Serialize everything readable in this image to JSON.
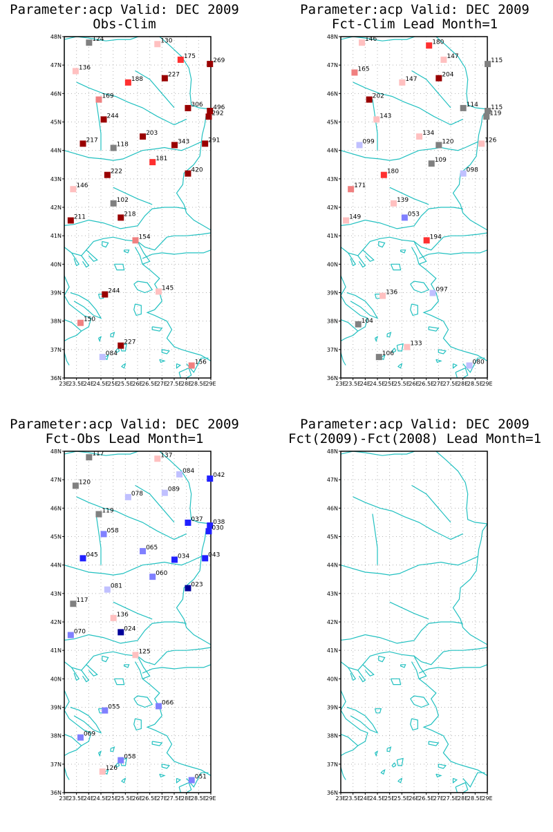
{
  "panels": [
    {
      "title_line1": "Parameter:acp Valid: DEC 2009",
      "title_line2": "Obs-Clim",
      "stations": [
        {
          "lon": 24.0,
          "lat": 47.8,
          "label": "124",
          "color": "#808080"
        },
        {
          "lon": 26.8,
          "lat": 47.75,
          "label": "130",
          "color": "#ffc0c0"
        },
        {
          "lon": 27.75,
          "lat": 47.2,
          "label": "175",
          "color": "#ff3030"
        },
        {
          "lon": 28.95,
          "lat": 47.05,
          "label": "269",
          "color": "#990000"
        },
        {
          "lon": 23.45,
          "lat": 46.8,
          "label": "136",
          "color": "#ffc0c0"
        },
        {
          "lon": 27.1,
          "lat": 46.55,
          "label": "227",
          "color": "#990000"
        },
        {
          "lon": 25.6,
          "lat": 46.4,
          "label": "188",
          "color": "#ff3030"
        },
        {
          "lon": 24.4,
          "lat": 45.8,
          "label": "169",
          "color": "#f08080"
        },
        {
          "lon": 28.05,
          "lat": 45.5,
          "label": "306",
          "color": "#990000"
        },
        {
          "lon": 28.95,
          "lat": 45.4,
          "label": "496",
          "color": "#990000"
        },
        {
          "lon": 28.9,
          "lat": 45.2,
          "label": "292",
          "color": "#990000"
        },
        {
          "lon": 24.6,
          "lat": 45.1,
          "label": "244",
          "color": "#990000"
        },
        {
          "lon": 26.2,
          "lat": 44.5,
          "label": "203",
          "color": "#990000"
        },
        {
          "lon": 23.75,
          "lat": 44.25,
          "label": "217",
          "color": "#990000"
        },
        {
          "lon": 25.0,
          "lat": 44.1,
          "label": "118",
          "color": "#808080"
        },
        {
          "lon": 27.5,
          "lat": 44.2,
          "label": "343",
          "color": "#990000"
        },
        {
          "lon": 28.75,
          "lat": 44.25,
          "label": "291",
          "color": "#990000"
        },
        {
          "lon": 26.6,
          "lat": 43.6,
          "label": "181",
          "color": "#ff3030"
        },
        {
          "lon": 28.05,
          "lat": 43.2,
          "label": "420",
          "color": "#990000"
        },
        {
          "lon": 24.75,
          "lat": 43.15,
          "label": "222",
          "color": "#990000"
        },
        {
          "lon": 23.35,
          "lat": 42.65,
          "label": "146",
          "color": "#ffc0c0"
        },
        {
          "lon": 25.0,
          "lat": 42.15,
          "label": "102",
          "color": "#808080"
        },
        {
          "lon": 25.3,
          "lat": 41.65,
          "label": "218",
          "color": "#990000"
        },
        {
          "lon": 23.25,
          "lat": 41.55,
          "label": "211",
          "color": "#990000"
        },
        {
          "lon": 25.9,
          "lat": 40.85,
          "label": "154",
          "color": "#f08080"
        },
        {
          "lon": 26.85,
          "lat": 39.05,
          "label": "145",
          "color": "#ffc0c0"
        },
        {
          "lon": 24.65,
          "lat": 38.95,
          "label": "244",
          "color": "#990000"
        },
        {
          "lon": 23.65,
          "lat": 37.95,
          "label": "150",
          "color": "#f08080"
        },
        {
          "lon": 25.3,
          "lat": 37.15,
          "label": "227",
          "color": "#990000"
        },
        {
          "lon": 24.55,
          "lat": 36.75,
          "label": "084",
          "color": "#c0c0ff"
        },
        {
          "lon": 28.2,
          "lat": 36.45,
          "label": "156",
          "color": "#f08080"
        }
      ]
    },
    {
      "title_line1": "Parameter:acp Valid: DEC 2009",
      "title_line2": "Fct-Clim Lead Month=1",
      "stations": [
        {
          "lon": 23.85,
          "lat": 47.8,
          "label": "146",
          "color": "#ffc0c0"
        },
        {
          "lon": 26.6,
          "lat": 47.7,
          "label": "180",
          "color": "#ff3030"
        },
        {
          "lon": 27.2,
          "lat": 47.2,
          "label": "147",
          "color": "#ffc0c0"
        },
        {
          "lon": 29.0,
          "lat": 47.05,
          "label": "115",
          "color": "#808080"
        },
        {
          "lon": 23.55,
          "lat": 46.75,
          "label": "165",
          "color": "#f08080"
        },
        {
          "lon": 27.0,
          "lat": 46.55,
          "label": "204",
          "color": "#990000"
        },
        {
          "lon": 25.5,
          "lat": 46.4,
          "label": "147",
          "color": "#ffc0c0"
        },
        {
          "lon": 24.15,
          "lat": 45.8,
          "label": "202",
          "color": "#990000"
        },
        {
          "lon": 28.0,
          "lat": 45.5,
          "label": "114",
          "color": "#808080"
        },
        {
          "lon": 29.0,
          "lat": 45.4,
          "label": "115",
          "color": "#808080"
        },
        {
          "lon": 28.95,
          "lat": 45.2,
          "label": "119",
          "color": "#808080"
        },
        {
          "lon": 24.45,
          "lat": 45.1,
          "label": "143",
          "color": "#ffc0c0"
        },
        {
          "lon": 26.2,
          "lat": 44.5,
          "label": "134",
          "color": "#ffc0c0"
        },
        {
          "lon": 27.0,
          "lat": 44.2,
          "label": "120",
          "color": "#808080"
        },
        {
          "lon": 28.75,
          "lat": 44.25,
          "label": "126",
          "color": "#ffc0c0"
        },
        {
          "lon": 23.75,
          "lat": 44.2,
          "label": "099",
          "color": "#c0c0ff"
        },
        {
          "lon": 26.7,
          "lat": 43.55,
          "label": "109",
          "color": "#808080"
        },
        {
          "lon": 28.0,
          "lat": 43.2,
          "label": "098",
          "color": "#c0c0ff"
        },
        {
          "lon": 24.75,
          "lat": 43.15,
          "label": "180",
          "color": "#ff3030"
        },
        {
          "lon": 23.4,
          "lat": 42.65,
          "label": "171",
          "color": "#f08080"
        },
        {
          "lon": 25.15,
          "lat": 42.15,
          "label": "139",
          "color": "#ffc0c0"
        },
        {
          "lon": 25.6,
          "lat": 41.65,
          "label": "053",
          "color": "#8080ff"
        },
        {
          "lon": 23.2,
          "lat": 41.55,
          "label": "149",
          "color": "#ffc0c0"
        },
        {
          "lon": 26.5,
          "lat": 40.85,
          "label": "194",
          "color": "#ff3030"
        },
        {
          "lon": 26.75,
          "lat": 39.0,
          "label": "097",
          "color": "#c0c0ff"
        },
        {
          "lon": 24.7,
          "lat": 38.9,
          "label": "136",
          "color": "#ffc0c0"
        },
        {
          "lon": 23.7,
          "lat": 37.9,
          "label": "104",
          "color": "#808080"
        },
        {
          "lon": 25.7,
          "lat": 37.1,
          "label": "133",
          "color": "#ffc0c0"
        },
        {
          "lon": 24.55,
          "lat": 36.75,
          "label": "106",
          "color": "#808080"
        },
        {
          "lon": 28.25,
          "lat": 36.45,
          "label": "080",
          "color": "#c0c0ff"
        }
      ]
    },
    {
      "title_line1": "Parameter:acp Valid: DEC 2009",
      "title_line2": "Fct-Obs Lead Month=1",
      "stations": [
        {
          "lon": 24.0,
          "lat": 47.8,
          "label": "117",
          "color": "#808080"
        },
        {
          "lon": 26.8,
          "lat": 47.75,
          "label": "137",
          "color": "#ffc0c0"
        },
        {
          "lon": 27.7,
          "lat": 47.2,
          "label": "084",
          "color": "#c0c0ff"
        },
        {
          "lon": 28.95,
          "lat": 47.05,
          "label": "042",
          "color": "#2020ff"
        },
        {
          "lon": 23.45,
          "lat": 46.8,
          "label": "120",
          "color": "#808080"
        },
        {
          "lon": 27.1,
          "lat": 46.55,
          "label": "089",
          "color": "#c0c0ff"
        },
        {
          "lon": 25.6,
          "lat": 46.4,
          "label": "078",
          "color": "#c0c0ff"
        },
        {
          "lon": 24.4,
          "lat": 45.8,
          "label": "119",
          "color": "#808080"
        },
        {
          "lon": 28.05,
          "lat": 45.5,
          "label": "037",
          "color": "#2020ff"
        },
        {
          "lon": 28.95,
          "lat": 45.4,
          "label": "038",
          "color": "#2020ff"
        },
        {
          "lon": 28.9,
          "lat": 45.2,
          "label": "030",
          "color": "#2020ff"
        },
        {
          "lon": 24.6,
          "lat": 45.1,
          "label": "058",
          "color": "#8080ff"
        },
        {
          "lon": 26.2,
          "lat": 44.5,
          "label": "065",
          "color": "#8080ff"
        },
        {
          "lon": 23.75,
          "lat": 44.25,
          "label": "045",
          "color": "#2020ff"
        },
        {
          "lon": 27.5,
          "lat": 44.2,
          "label": "034",
          "color": "#2020ff"
        },
        {
          "lon": 28.75,
          "lat": 44.25,
          "label": "043",
          "color": "#2020ff"
        },
        {
          "lon": 26.6,
          "lat": 43.6,
          "label": "060",
          "color": "#8080ff"
        },
        {
          "lon": 28.05,
          "lat": 43.2,
          "label": "023",
          "color": "#000099"
        },
        {
          "lon": 24.75,
          "lat": 43.15,
          "label": "081",
          "color": "#c0c0ff"
        },
        {
          "lon": 23.35,
          "lat": 42.65,
          "label": "117",
          "color": "#808080"
        },
        {
          "lon": 25.0,
          "lat": 42.15,
          "label": "136",
          "color": "#ffc0c0"
        },
        {
          "lon": 25.3,
          "lat": 41.65,
          "label": "024",
          "color": "#000099"
        },
        {
          "lon": 23.25,
          "lat": 41.55,
          "label": "070",
          "color": "#8080ff"
        },
        {
          "lon": 25.9,
          "lat": 40.85,
          "label": "125",
          "color": "#ffc0c0"
        },
        {
          "lon": 26.85,
          "lat": 39.05,
          "label": "066",
          "color": "#8080ff"
        },
        {
          "lon": 24.65,
          "lat": 38.9,
          "label": "055",
          "color": "#8080ff"
        },
        {
          "lon": 23.65,
          "lat": 37.95,
          "label": "069",
          "color": "#8080ff"
        },
        {
          "lon": 25.3,
          "lat": 37.15,
          "label": "058",
          "color": "#8080ff"
        },
        {
          "lon": 24.55,
          "lat": 36.75,
          "label": "126",
          "color": "#ffc0c0"
        },
        {
          "lon": 28.2,
          "lat": 36.45,
          "label": "051",
          "color": "#8080ff"
        }
      ]
    },
    {
      "title_line1": "Parameter:acp Valid: DEC 2009",
      "title_line2": "Fct(2009)-Fct(2008) Lead Month=1",
      "stations": []
    }
  ],
  "axes": {
    "lat_labels": [
      "48N",
      "47N",
      "46N",
      "45N",
      "44N",
      "43N",
      "42N",
      "41N",
      "40N",
      "39N",
      "38N",
      "37N",
      "36N"
    ],
    "lon_labels": [
      "23E",
      "23.5E",
      "24E",
      "24.5E",
      "25E",
      "25.5E",
      "26E",
      "26.5E",
      "27E",
      "27.5E",
      "28E",
      "28.5E",
      "29E"
    ],
    "lon_min": 23,
    "lon_max": 29,
    "lat_min": 36,
    "lat_max": 48
  },
  "colors": {
    "coast": "#20c0c0",
    "grid": "#b0b0b0",
    "frame": "#000000"
  }
}
